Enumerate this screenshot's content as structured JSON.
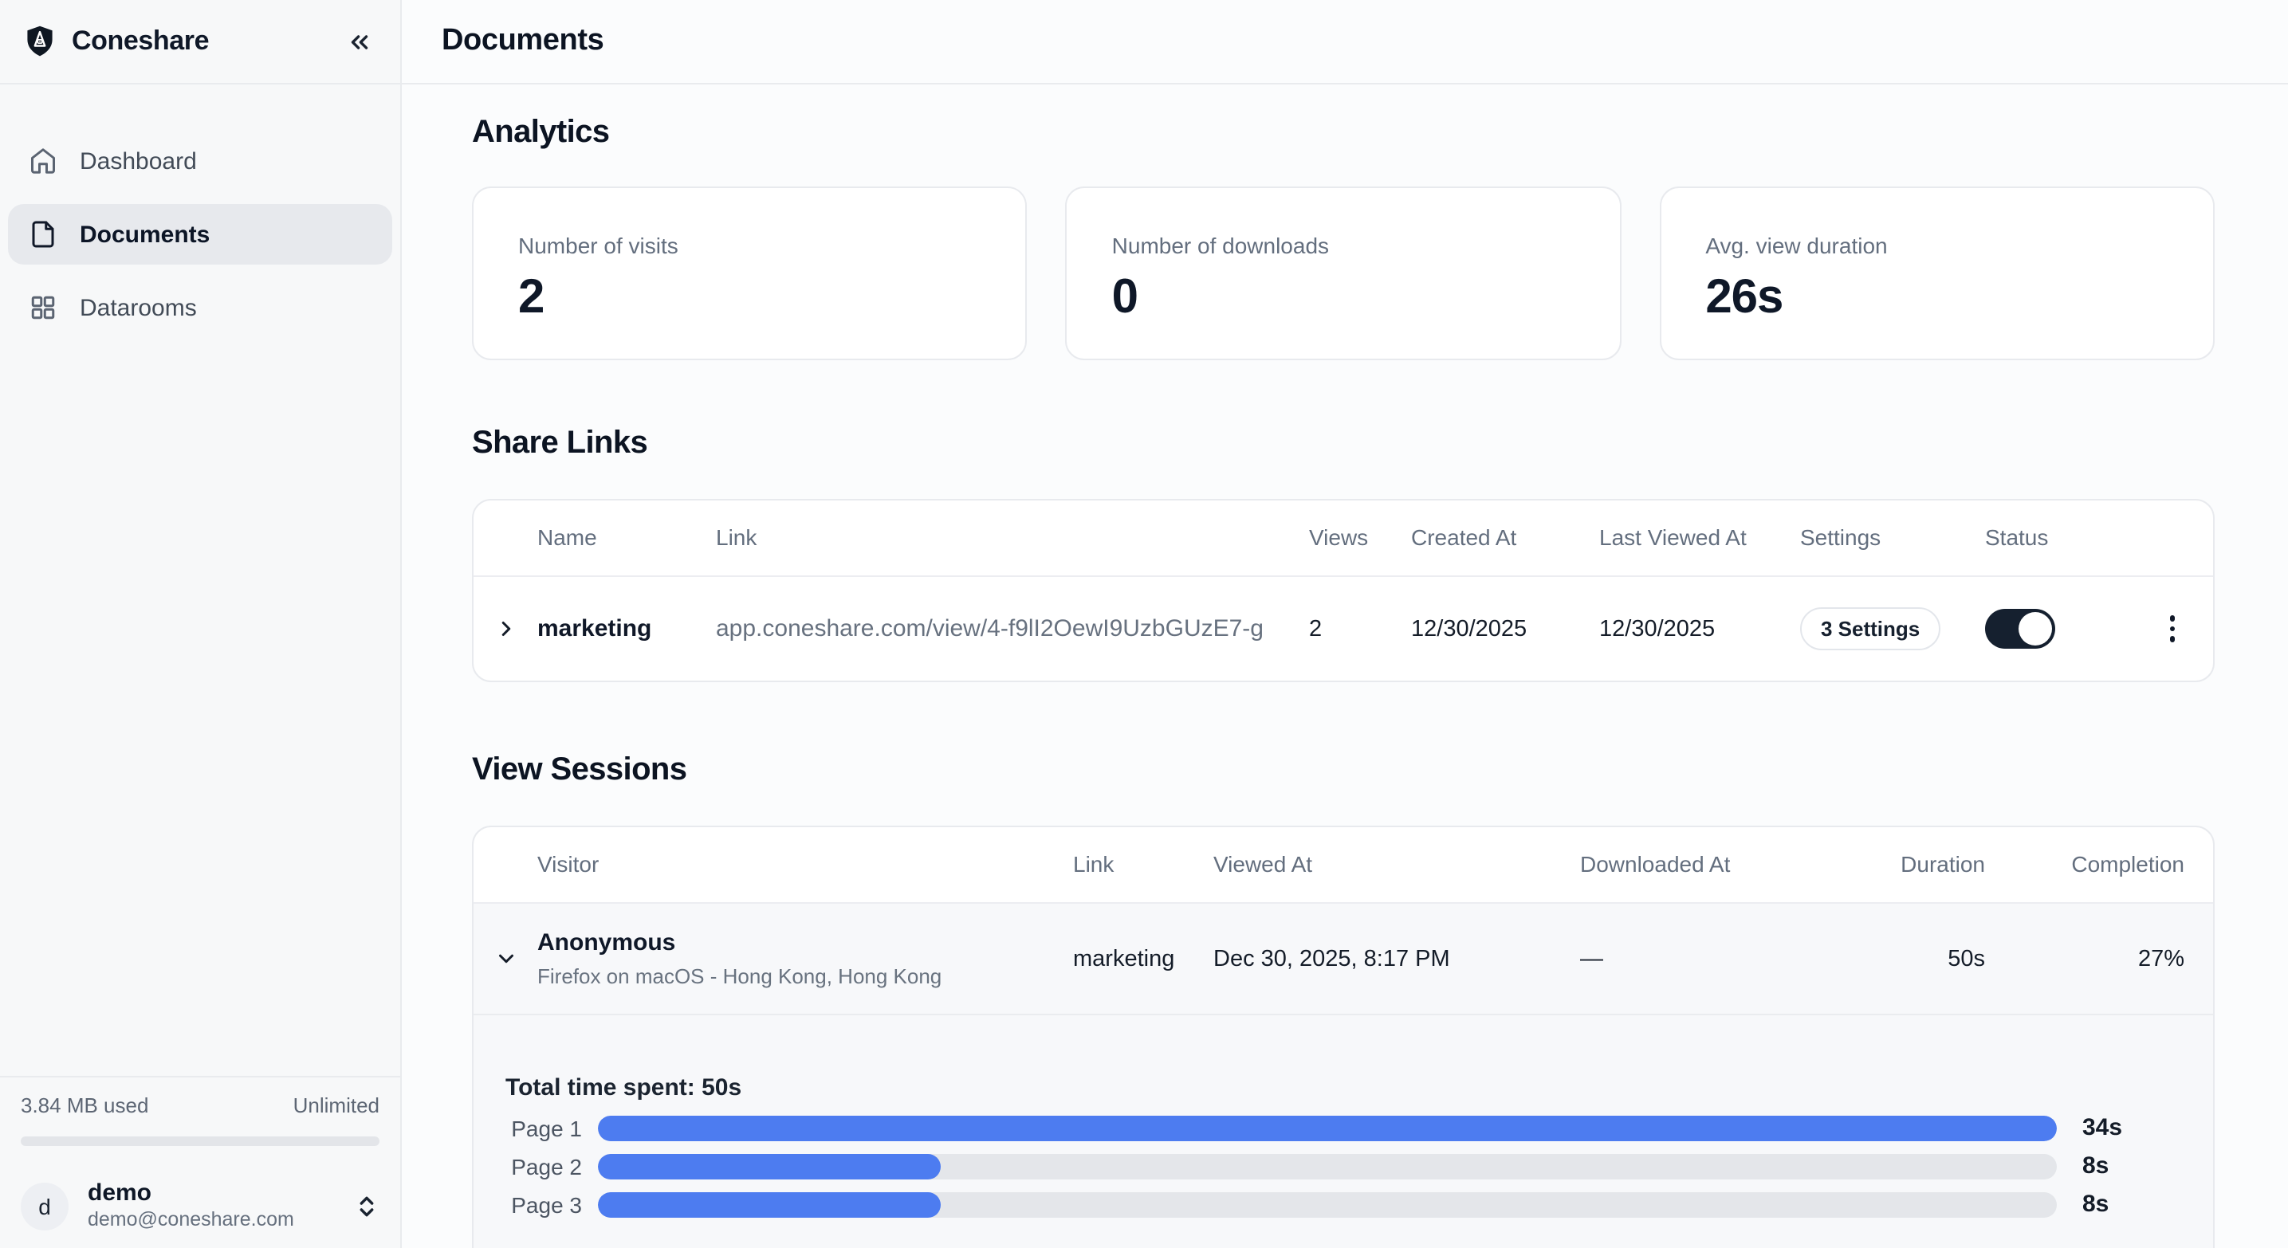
{
  "brand": {
    "name": "Coneshare"
  },
  "sidebar": {
    "nav": [
      {
        "label": "Dashboard",
        "icon": "home-icon",
        "active": false
      },
      {
        "label": "Documents",
        "icon": "document-icon",
        "active": true
      },
      {
        "label": "Datarooms",
        "icon": "grid-icon",
        "active": false
      }
    ],
    "storage": {
      "used": "3.84 MB used",
      "limit": "Unlimited",
      "fill_percent": 0
    },
    "user": {
      "initial": "d",
      "name": "demo",
      "email": "demo@coneshare.com"
    }
  },
  "header": {
    "title": "Documents"
  },
  "analytics": {
    "title": "Analytics",
    "cards": [
      {
        "label": "Number of visits",
        "value": "2"
      },
      {
        "label": "Number of downloads",
        "value": "0"
      },
      {
        "label": "Avg. view duration",
        "value": "26s"
      }
    ]
  },
  "share_links": {
    "title": "Share Links",
    "columns": [
      "Name",
      "Link",
      "Views",
      "Created At",
      "Last Viewed At",
      "Settings",
      "Status"
    ],
    "row": {
      "name": "marketing",
      "link": "app.coneshare.com/view/4-f9lI2OewI9UzbGUzE7-g",
      "views": "2",
      "created_at": "12/30/2025",
      "last_viewed_at": "12/30/2025",
      "settings_label": "3 Settings",
      "status_on": true
    }
  },
  "view_sessions": {
    "title": "View Sessions",
    "columns": [
      "Visitor",
      "Link",
      "Viewed At",
      "Downloaded At",
      "Duration",
      "Completion"
    ],
    "row": {
      "visitor_name": "Anonymous",
      "visitor_meta": "Firefox on macOS - Hong Kong, Hong Kong",
      "link": "marketing",
      "viewed_at": "Dec 30, 2025, 8:17 PM",
      "downloaded_at": "—",
      "duration": "50s",
      "completion": "27%"
    },
    "detail": {
      "total_label": "Total time spent: 50s",
      "chart_data": {
        "type": "bar",
        "categories": [
          "Page 1",
          "Page 2",
          "Page 3"
        ],
        "values": [
          34,
          8,
          8
        ],
        "unit": "s",
        "title": "Total time spent: 50s",
        "bar_color": "#4d7cf0",
        "track_color": "#e4e6ea"
      }
    }
  },
  "colors": {
    "accent_blue": "#4d7cf0",
    "toggle_on": "#15202f",
    "sidebar_bg": "#f7f8f9",
    "main_bg": "#fbfcfd"
  }
}
